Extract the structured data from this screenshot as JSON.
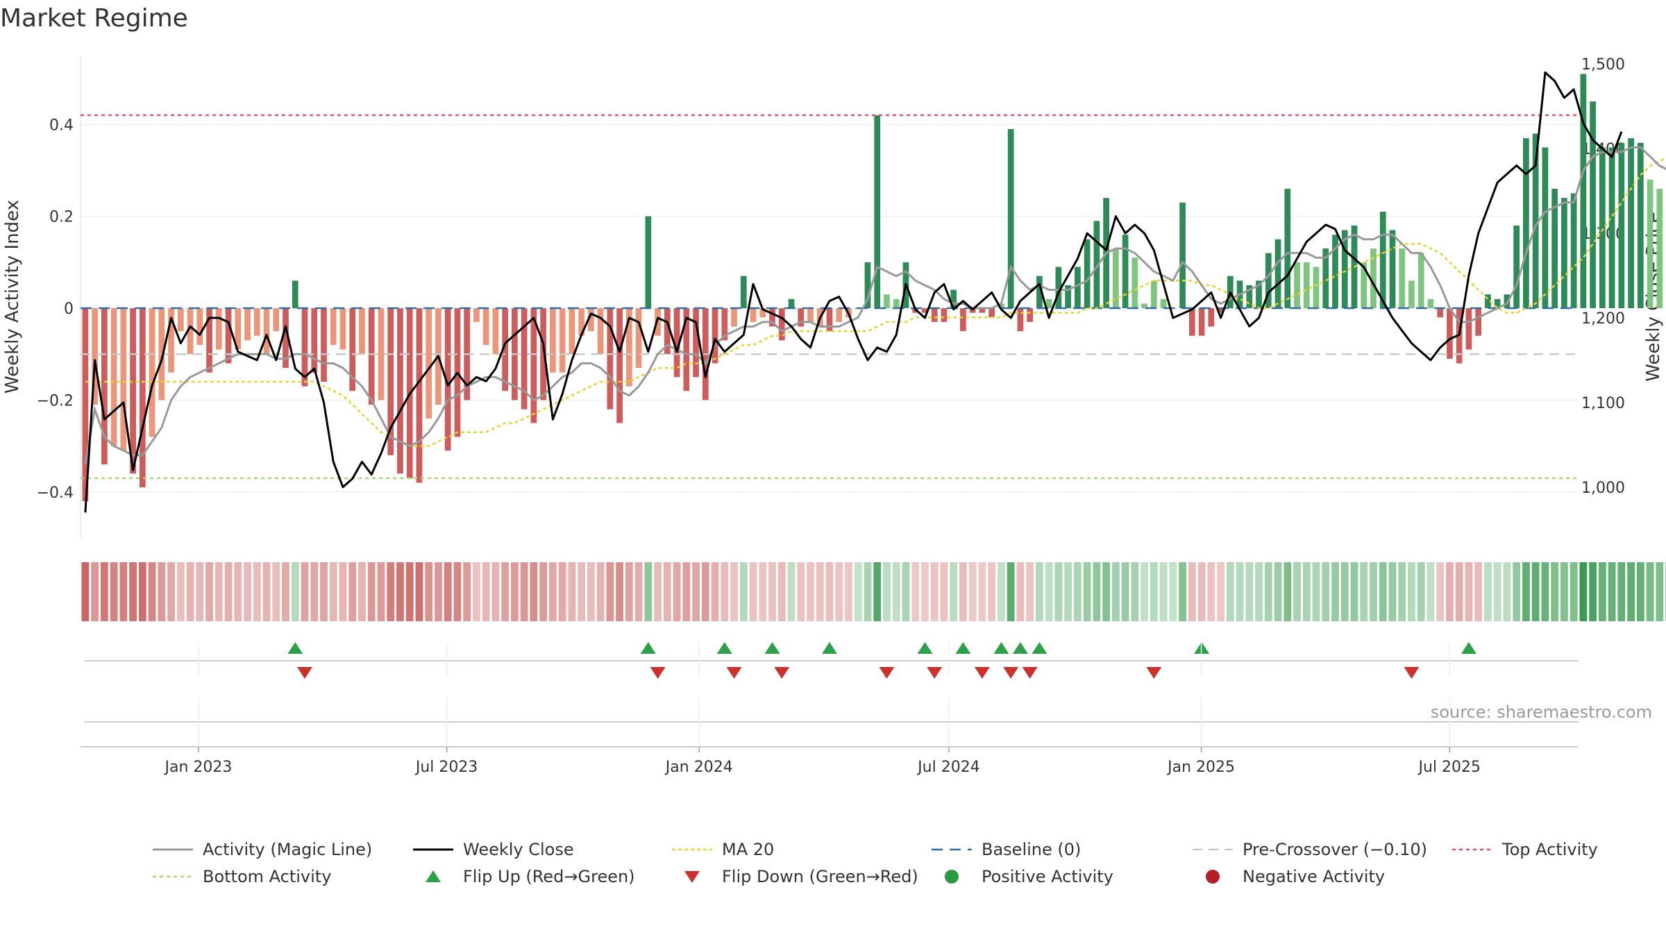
{
  "title": "Market Regime",
  "source": "source: sharemaestro.com",
  "colors": {
    "activity_line": "#999999",
    "weekly_close": "#000000",
    "ma20": "#e6d531",
    "baseline": "#2f6f9f",
    "pre_crossover": "#c8c8c8",
    "top_activity": "#e8506a",
    "bottom_activity": "#a8d870",
    "flip_up": "#2ea04a",
    "flip_down": "#d0302c",
    "positive_activity": "#2a9a40",
    "negative_activity": "#b22025",
    "pos_dark": "#2e8b57",
    "pos_light": "#7fc47f",
    "neg_dark": "#cd5c5c",
    "neg_light": "#e9967a"
  },
  "chart_data": {
    "type": "bar",
    "title": "Market Regime",
    "x_start": "2022-10-07",
    "x_end": "2025-10-03",
    "x_ticks": [
      {
        "date": "2023-01-01",
        "label": "Jan 2023"
      },
      {
        "date": "2023-07-01",
        "label": "Jul 2023"
      },
      {
        "date": "2024-01-01",
        "label": "Jan 2024"
      },
      {
        "date": "2024-07-01",
        "label": "Jul 2024"
      },
      {
        "date": "2025-01-01",
        "label": "Jan 2025"
      },
      {
        "date": "2025-07-01",
        "label": "Jul 2025"
      }
    ],
    "ylabel_left": "Weekly Activity Index",
    "ylabel_right": "Weekly Close Price",
    "ylim_left": [
      -0.5,
      0.55
    ],
    "ylim_right": [
      940,
      1510
    ],
    "yticks_left": [
      {
        "v": -0.4,
        "label": "−0.4"
      },
      {
        "v": -0.2,
        "label": "−0.2"
      },
      {
        "v": 0,
        "label": "0"
      },
      {
        "v": 0.2,
        "label": "0.2"
      },
      {
        "v": 0.4,
        "label": "0.4"
      }
    ],
    "yticks_right": [
      {
        "v": 1000,
        "label": "1,000"
      },
      {
        "v": 1100,
        "label": "1,100"
      },
      {
        "v": 1200,
        "label": "1,200"
      },
      {
        "v": 1300,
        "label": "1,300"
      },
      {
        "v": 1400,
        "label": "1,400"
      },
      {
        "v": 1500,
        "label": "1,500"
      }
    ],
    "thresholds": {
      "baseline": 0,
      "pre_crossover": -0.1,
      "top_activity": 0.42,
      "bottom_activity": -0.37
    },
    "activity_index": [
      -0.42,
      -0.21,
      -0.34,
      -0.3,
      -0.31,
      -0.36,
      -0.39,
      -0.28,
      -0.2,
      -0.14,
      -0.05,
      -0.1,
      -0.08,
      -0.14,
      -0.09,
      -0.12,
      -0.09,
      -0.07,
      -0.06,
      -0.1,
      -0.05,
      -0.13,
      0.06,
      -0.17,
      -0.14,
      -0.16,
      -0.08,
      -0.09,
      -0.18,
      -0.1,
      -0.21,
      -0.2,
      -0.32,
      -0.36,
      -0.37,
      -0.38,
      -0.24,
      -0.21,
      -0.31,
      -0.28,
      -0.2,
      -0.03,
      -0.08,
      -0.1,
      -0.18,
      -0.2,
      -0.22,
      -0.25,
      -0.2,
      -0.14,
      -0.14,
      -0.1,
      -0.06,
      -0.05,
      -0.1,
      -0.22,
      -0.25,
      -0.17,
      -0.13,
      0.2,
      -0.06,
      -0.1,
      -0.15,
      -0.18,
      -0.15,
      -0.2,
      -0.12,
      -0.07,
      -0.04,
      0.07,
      -0.03,
      -0.02,
      -0.04,
      -0.07,
      0.02,
      -0.04,
      -0.03,
      -0.04,
      -0.05,
      -0.03,
      -0.02,
      0.0,
      0.1,
      0.42,
      0.03,
      0.02,
      0.1,
      -0.01,
      -0.01,
      -0.03,
      -0.03,
      0.04,
      -0.05,
      -0.01,
      -0.01,
      -0.02,
      0.01,
      0.39,
      -0.05,
      -0.03,
      0.07,
      0.02,
      0.09,
      0.05,
      0.09,
      0.15,
      0.19,
      0.24,
      0.13,
      0.16,
      0.11,
      0.01,
      0.06,
      0.02,
      0.0,
      0.23,
      -0.06,
      -0.06,
      -0.04,
      -0.01,
      0.07,
      0.06,
      0.05,
      0.06,
      0.12,
      0.15,
      0.26,
      0.1,
      0.1,
      0.09,
      0.13,
      0.16,
      0.17,
      0.18,
      0.1,
      0.13,
      0.21,
      0.17,
      0.13,
      0.06,
      0.12,
      0.02,
      -0.02,
      -0.11,
      -0.12,
      -0.09,
      -0.06,
      0.03,
      0.02,
      0.03,
      0.18,
      0.37,
      0.38,
      0.35,
      0.26,
      0.24,
      0.25,
      0.51,
      0.45,
      0.35,
      0.35,
      0.36,
      0.37,
      0.36,
      0.28,
      0.26,
      0.24,
      0.31
    ],
    "weekly_close": [
      970,
      1150,
      1080,
      1090,
      1100,
      1020,
      1070,
      1120,
      1150,
      1200,
      1170,
      1190,
      1180,
      1200,
      1200,
      1195,
      1160,
      1155,
      1150,
      1180,
      1150,
      1190,
      1140,
      1130,
      1140,
      1100,
      1030,
      1000,
      1010,
      1030,
      1015,
      1040,
      1070,
      1090,
      1110,
      1125,
      1140,
      1155,
      1120,
      1135,
      1120,
      1130,
      1125,
      1140,
      1170,
      1180,
      1190,
      1200,
      1170,
      1080,
      1110,
      1150,
      1180,
      1205,
      1200,
      1190,
      1160,
      1200,
      1195,
      1160,
      1200,
      1195,
      1160,
      1200,
      1195,
      1130,
      1175,
      1160,
      1170,
      1180,
      1240,
      1210,
      1205,
      1200,
      1190,
      1175,
      1165,
      1200,
      1220,
      1225,
      1205,
      1175,
      1150,
      1165,
      1160,
      1180,
      1240,
      1210,
      1200,
      1230,
      1240,
      1210,
      1220,
      1210,
      1220,
      1230,
      1210,
      1200,
      1220,
      1230,
      1240,
      1200,
      1230,
      1250,
      1270,
      1300,
      1290,
      1280,
      1320,
      1300,
      1310,
      1300,
      1280,
      1240,
      1200,
      1205,
      1210,
      1220,
      1230,
      1200,
      1230,
      1210,
      1190,
      1200,
      1230,
      1240,
      1250,
      1270,
      1290,
      1300,
      1310,
      1305,
      1280,
      1270,
      1260,
      1240,
      1220,
      1200,
      1185,
      1170,
      1160,
      1150,
      1165,
      1175,
      1180,
      1250,
      1300,
      1330,
      1360,
      1370,
      1380,
      1370,
      1380,
      1490,
      1480,
      1460,
      1470,
      1430,
      1410,
      1400,
      1390,
      1420
    ],
    "activity_magic_line": [
      -0.34,
      -0.22,
      -0.28,
      -0.3,
      -0.31,
      -0.32,
      -0.32,
      -0.29,
      -0.26,
      -0.2,
      -0.17,
      -0.15,
      -0.14,
      -0.13,
      -0.12,
      -0.11,
      -0.1,
      -0.1,
      -0.1,
      -0.1,
      -0.11,
      -0.11,
      -0.1,
      -0.1,
      -0.11,
      -0.12,
      -0.12,
      -0.13,
      -0.15,
      -0.17,
      -0.2,
      -0.24,
      -0.28,
      -0.29,
      -0.3,
      -0.29,
      -0.27,
      -0.24,
      -0.2,
      -0.19,
      -0.17,
      -0.16,
      -0.15,
      -0.15,
      -0.16,
      -0.17,
      -0.18,
      -0.2,
      -0.19,
      -0.17,
      -0.15,
      -0.14,
      -0.12,
      -0.12,
      -0.13,
      -0.15,
      -0.18,
      -0.19,
      -0.17,
      -0.14,
      -0.1,
      -0.08,
      -0.09,
      -0.1,
      -0.1,
      -0.12,
      -0.08,
      -0.06,
      -0.05,
      -0.04,
      -0.04,
      -0.03,
      -0.03,
      -0.05,
      -0.04,
      -0.03,
      -0.03,
      -0.04,
      -0.04,
      -0.04,
      -0.03,
      -0.02,
      0.02,
      0.09,
      0.08,
      0.07,
      0.08,
      0.06,
      0.05,
      0.04,
      0.02,
      0.01,
      0.01,
      0.0,
      0.0,
      0.0,
      0.01,
      0.09,
      0.06,
      0.04,
      0.05,
      0.04,
      0.04,
      0.04,
      0.05,
      0.06,
      0.09,
      0.12,
      0.13,
      0.13,
      0.12,
      0.1,
      0.08,
      0.07,
      0.06,
      0.1,
      0.08,
      0.05,
      0.02,
      0.01,
      0.02,
      0.03,
      0.04,
      0.05,
      0.07,
      0.1,
      0.12,
      0.12,
      0.12,
      0.11,
      0.11,
      0.13,
      0.15,
      0.16,
      0.15,
      0.15,
      0.16,
      0.16,
      0.14,
      0.12,
      0.12,
      0.09,
      0.05,
      0.0,
      -0.03,
      -0.03,
      -0.02,
      -0.01,
      0.0,
      0.01,
      0.05,
      0.12,
      0.18,
      0.21,
      0.22,
      0.23,
      0.23,
      0.3,
      0.33,
      0.34,
      0.34,
      0.34,
      0.35,
      0.35,
      0.33,
      0.31,
      0.3,
      0.3
    ],
    "ma20": [
      -0.16,
      -0.16,
      -0.16,
      -0.16,
      -0.16,
      -0.16,
      -0.16,
      -0.16,
      -0.16,
      -0.16,
      -0.16,
      -0.16,
      -0.16,
      -0.16,
      -0.16,
      -0.16,
      -0.16,
      -0.16,
      -0.16,
      -0.16,
      -0.16,
      -0.16,
      -0.16,
      -0.16,
      -0.16,
      -0.17,
      -0.18,
      -0.19,
      -0.21,
      -0.23,
      -0.25,
      -0.27,
      -0.28,
      -0.29,
      -0.3,
      -0.3,
      -0.3,
      -0.29,
      -0.28,
      -0.27,
      -0.27,
      -0.27,
      -0.27,
      -0.26,
      -0.25,
      -0.25,
      -0.24,
      -0.23,
      -0.22,
      -0.21,
      -0.2,
      -0.19,
      -0.18,
      -0.17,
      -0.16,
      -0.16,
      -0.16,
      -0.16,
      -0.15,
      -0.14,
      -0.13,
      -0.13,
      -0.13,
      -0.12,
      -0.12,
      -0.12,
      -0.11,
      -0.1,
      -0.09,
      -0.08,
      -0.08,
      -0.07,
      -0.06,
      -0.06,
      -0.05,
      -0.05,
      -0.05,
      -0.05,
      -0.05,
      -0.05,
      -0.05,
      -0.05,
      -0.05,
      -0.04,
      -0.03,
      -0.03,
      -0.03,
      -0.02,
      -0.02,
      -0.02,
      -0.02,
      -0.02,
      -0.02,
      -0.02,
      -0.02,
      -0.02,
      -0.02,
      -0.01,
      -0.01,
      -0.01,
      -0.01,
      -0.01,
      -0.01,
      -0.01,
      -0.01,
      0.0,
      0.0,
      0.01,
      0.02,
      0.03,
      0.04,
      0.05,
      0.06,
      0.06,
      0.06,
      0.06,
      0.06,
      0.05,
      0.05,
      0.04,
      0.03,
      0.02,
      0.01,
      0.0,
      0.0,
      0.01,
      0.02,
      0.03,
      0.04,
      0.05,
      0.06,
      0.07,
      0.08,
      0.09,
      0.1,
      0.11,
      0.12,
      0.13,
      0.14,
      0.14,
      0.14,
      0.13,
      0.12,
      0.1,
      0.08,
      0.06,
      0.04,
      0.02,
      0.0,
      -0.01,
      -0.01,
      0.0,
      0.01,
      0.03,
      0.05,
      0.07,
      0.09,
      0.11,
      0.14,
      0.17,
      0.2,
      0.23,
      0.26,
      0.29,
      0.31,
      0.32,
      0.33,
      0.34,
      0.35
    ],
    "flip_up_idx": [
      22,
      59,
      67,
      72,
      78,
      88,
      92,
      96,
      98,
      100,
      117,
      145
    ],
    "flip_down_idx": [
      23,
      60,
      68,
      73,
      84,
      89,
      94,
      97,
      99,
      112,
      139
    ],
    "legend": [
      {
        "key": "magic",
        "label": "Activity (Magic Line)"
      },
      {
        "key": "close",
        "label": "Weekly Close"
      },
      {
        "key": "ma20",
        "label": "MA 20"
      },
      {
        "key": "baseline",
        "label": "Baseline (0)"
      },
      {
        "key": "precross",
        "label": "Pre-Crossover (−0.10)"
      },
      {
        "key": "top",
        "label": "Top Activity"
      },
      {
        "key": "bottom",
        "label": "Bottom Activity"
      },
      {
        "key": "flipup",
        "label": "Flip Up (Red→Green)"
      },
      {
        "key": "flipdown",
        "label": "Flip Down (Green→Red)"
      },
      {
        "key": "posact",
        "label": "Positive Activity"
      },
      {
        "key": "negact",
        "label": "Negative Activity"
      }
    ]
  }
}
